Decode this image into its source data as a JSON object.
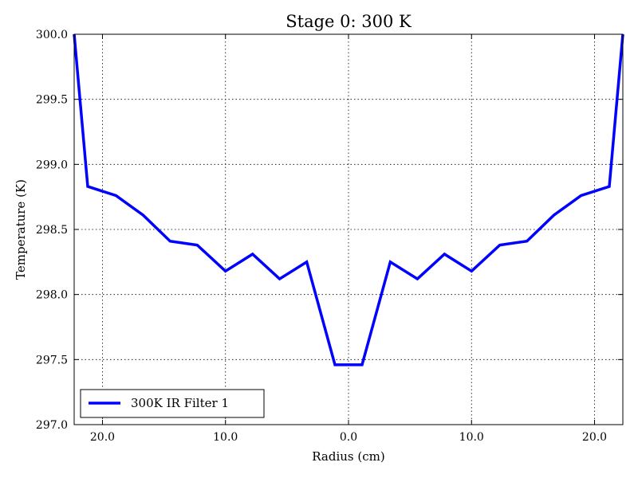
{
  "chart_data": {
    "type": "line",
    "title": "Stage 0: 300 K",
    "xlabel": "Radius (cm)",
    "ylabel": "Temperature (K)",
    "xlim": [
      -22.3,
      22.3
    ],
    "ylim": [
      297.0,
      300.0
    ],
    "x_axis_mirrored_labels": true,
    "xticks": [
      -20,
      -10,
      0,
      10,
      20
    ],
    "xtick_labels": [
      "20.0",
      "10.0",
      "0.0",
      "10.0",
      "20.0"
    ],
    "yticks": [
      297.0,
      297.5,
      298.0,
      298.5,
      299.0,
      299.5,
      300.0
    ],
    "ytick_labels": [
      "297.0",
      "297.5",
      "298.0",
      "298.5",
      "299.0",
      "299.5",
      "300.0"
    ],
    "grid": true,
    "legend_position": "lower-left",
    "series": [
      {
        "name": "300K IR Filter 1",
        "color": "#0000ff",
        "x": [
          -22.3,
          -21.2,
          -18.9,
          -16.7,
          -14.5,
          -12.3,
          -10.0,
          -7.8,
          -5.6,
          -3.4,
          -1.1,
          1.1,
          3.4,
          5.6,
          7.8,
          10.0,
          12.3,
          14.5,
          16.7,
          18.9,
          21.2,
          22.3
        ],
        "y": [
          300.0,
          298.83,
          298.76,
          298.61,
          298.41,
          298.38,
          298.18,
          298.31,
          298.12,
          298.25,
          297.46,
          297.46,
          298.25,
          298.12,
          298.31,
          298.18,
          298.38,
          298.41,
          298.61,
          298.76,
          298.83,
          300.0
        ]
      }
    ]
  }
}
